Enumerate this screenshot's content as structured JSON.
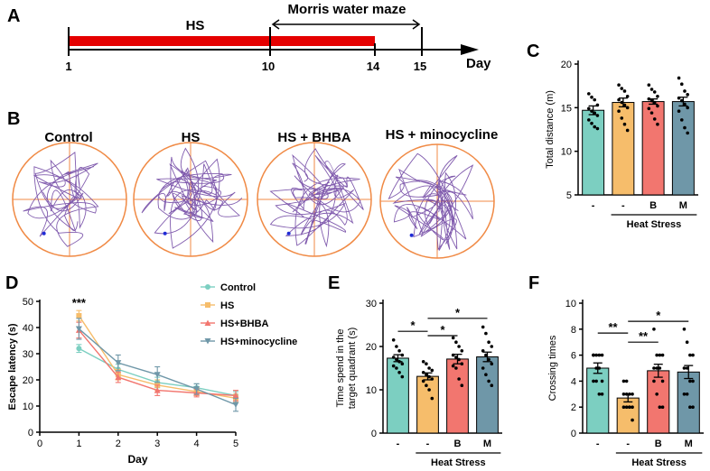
{
  "panel_letters": {
    "A": "A",
    "B": "B",
    "C": "C",
    "D": "D",
    "E": "E",
    "F": "F"
  },
  "colors": {
    "control": "#7ccfc1",
    "hs": "#f6bd6b",
    "bhba": "#f2766f",
    "mino": "#6f97a8",
    "red": "#e50000",
    "arena": "#f08a45",
    "path": "#6b3fa0",
    "axis": "#000000"
  },
  "timeline": {
    "hs_label": "HS",
    "mwm_label": "Morris water maze",
    "day_label": "Day",
    "ticks": [
      "1",
      "10",
      "14",
      "15"
    ]
  },
  "track_labels": [
    "Control",
    "HS",
    "HS + BHBA",
    "HS + minocycline"
  ],
  "chart_data": [
    {
      "panel": "C",
      "type": "bar",
      "categories": [
        "-",
        "-",
        "B",
        "M"
      ],
      "values": [
        14.7,
        15.6,
        15.7,
        15.7
      ],
      "errors": [
        0.5,
        0.5,
        0.3,
        0.5
      ],
      "points": [
        [
          16.6,
          16.2,
          15.9,
          15.3,
          14.9,
          14.6,
          14.4,
          14.1,
          13.6,
          13.2,
          12.8,
          12.6
        ],
        [
          17.6,
          17.2,
          16.9,
          16.3,
          15.9,
          15.6,
          15.3,
          15.0,
          14.6,
          13.8,
          13.1,
          12.4
        ],
        [
          17.6,
          17.1,
          16.8,
          16.3,
          16.0,
          15.8,
          15.6,
          15.2,
          14.9,
          14.4,
          13.7,
          13.1
        ],
        [
          18.4,
          17.7,
          16.9,
          16.5,
          16.1,
          15.8,
          15.4,
          15.0,
          14.6,
          13.6,
          12.7,
          12.1
        ]
      ],
      "ylabel": "Total distance (m)",
      "ylim": [
        5,
        20
      ],
      "yticks": [
        "5",
        "10",
        "15",
        "20"
      ],
      "group_label": "Heat Stress",
      "significance": []
    },
    {
      "panel": "D",
      "type": "line",
      "x": [
        1,
        2,
        3,
        4,
        5
      ],
      "xlabel": "Day",
      "ylabel": "Escape latency (s)",
      "ylim": [
        0,
        50
      ],
      "xlim": [
        0,
        5
      ],
      "yticks": [
        "0",
        "10",
        "20",
        "30",
        "40",
        "50"
      ],
      "xticks": [
        "0",
        "1",
        "2",
        "3",
        "4",
        "5"
      ],
      "annotation": "***",
      "series": [
        {
          "name": "Control",
          "values": [
            32,
            24,
            19,
            17,
            14
          ],
          "errors": [
            1.5,
            2,
            2,
            1.5,
            1.5
          ]
        },
        {
          "name": "HS",
          "values": [
            44.5,
            22,
            18,
            15.5,
            13
          ],
          "errors": [
            2,
            2,
            2,
            1.5,
            1.5
          ]
        },
        {
          "name": "HS+BHBA",
          "values": [
            39,
            21,
            16,
            15,
            14
          ],
          "errors": [
            3,
            2,
            2,
            1.5,
            2
          ]
        },
        {
          "name": "HS+minocycline",
          "values": [
            39.5,
            26.5,
            22,
            16.5,
            10.5
          ],
          "errors": [
            4,
            3,
            3,
            2,
            2.5
          ]
        }
      ]
    },
    {
      "panel": "E",
      "type": "bar",
      "categories": [
        "-",
        "-",
        "B",
        "M"
      ],
      "values": [
        17.3,
        13.1,
        17.1,
        17.6
      ],
      "errors": [
        0.8,
        0.8,
        1.1,
        1.1
      ],
      "points": [
        [
          21.5,
          20,
          19,
          18,
          17.5,
          17,
          16.5,
          16,
          15.5,
          15,
          14,
          13
        ],
        [
          16.5,
          16,
          15,
          14.5,
          14,
          13.5,
          13,
          12.5,
          12,
          11,
          10,
          8
        ],
        [
          22,
          21,
          20,
          19,
          18,
          17.5,
          17,
          16,
          15.5,
          15,
          12.5,
          11
        ],
        [
          24.5,
          23,
          21,
          20,
          19,
          18,
          17,
          16,
          15,
          13.5,
          12,
          11
        ]
      ],
      "ylabel": "Time spend in the target quadrant (s)",
      "ylim": [
        0,
        30
      ],
      "yticks": [
        "0",
        "10",
        "20",
        "30"
      ],
      "group_label": "Heat Stress",
      "significance": [
        {
          "from": 0,
          "to": 1,
          "y": 23.5,
          "label": "*"
        },
        {
          "from": 1,
          "to": 2,
          "y": 22.5,
          "label": "*"
        },
        {
          "from": 1,
          "to": 3,
          "y": 26.5,
          "label": "*"
        }
      ]
    },
    {
      "panel": "F",
      "type": "bar",
      "categories": [
        "-",
        "-",
        "B",
        "M"
      ],
      "values": [
        5.0,
        2.7,
        4.8,
        4.7
      ],
      "errors": [
        0.4,
        0.3,
        0.5,
        0.5
      ],
      "points": [
        [
          6,
          6,
          6,
          6,
          6,
          5,
          5,
          4,
          4,
          4,
          3,
          3
        ],
        [
          4,
          4,
          3,
          3,
          3,
          3,
          2,
          2,
          2,
          2,
          2,
          1
        ],
        [
          8,
          6,
          6,
          6,
          5,
          5,
          5,
          4,
          4,
          3,
          2,
          2
        ],
        [
          8,
          7,
          6,
          6,
          5,
          5,
          4,
          4,
          3,
          3,
          2,
          2
        ]
      ],
      "ylabel": "Crossing times",
      "ylim": [
        0,
        10
      ],
      "yticks": [
        "0",
        "2",
        "4",
        "6",
        "8",
        "10"
      ],
      "group_label": "Heat Stress",
      "significance": [
        {
          "from": 0,
          "to": 1,
          "y": 7.7,
          "label": "**"
        },
        {
          "from": 1,
          "to": 2,
          "y": 7.0,
          "label": "**"
        },
        {
          "from": 1,
          "to": 3,
          "y": 8.6,
          "label": "*"
        }
      ]
    }
  ]
}
